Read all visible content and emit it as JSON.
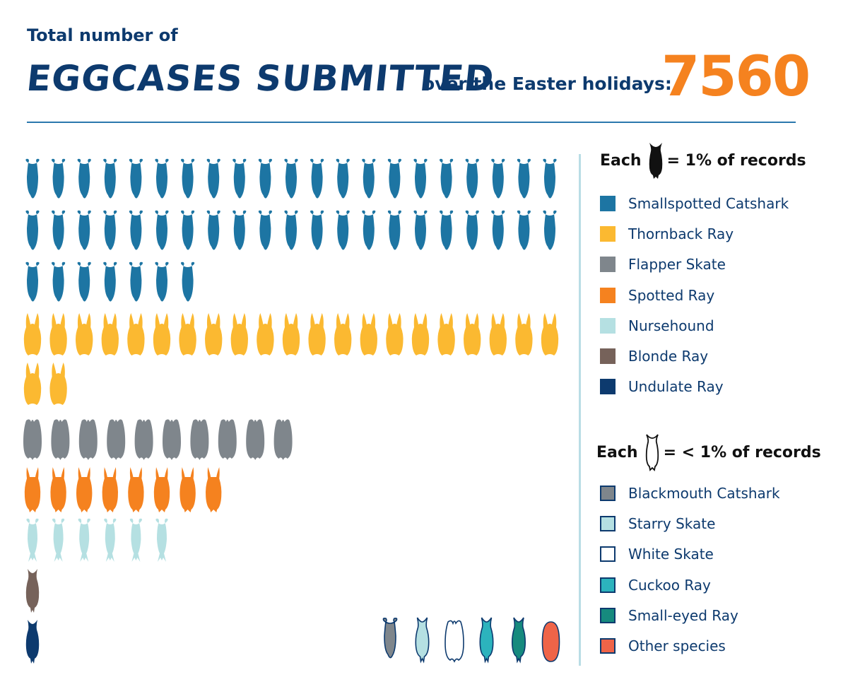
{
  "header": {
    "subtitle": "Total number of",
    "title_big": "EGGCASES SUBMITTED",
    "title_rest": "over the Easter holidays:",
    "total": "7560"
  },
  "legend": {
    "major_heading_prefix": "Each",
    "major_heading_suffix": "= 1% of records",
    "minor_heading_prefix": "Each",
    "minor_heading_suffix": "= < 1% of records",
    "major_items": [
      {
        "label": "Smallspotted Catshark",
        "color": "#1d75a3"
      },
      {
        "label": "Thornback Ray",
        "color": "#fbb931"
      },
      {
        "label": "Flapper Skate",
        "color": "#7f868c"
      },
      {
        "label": "Spotted Ray",
        "color": "#f5821f"
      },
      {
        "label": "Nursehound",
        "color": "#b5e0e2"
      },
      {
        "label": "Blonde Ray",
        "color": "#76625a"
      },
      {
        "label": "Undulate Ray",
        "color": "#0d3a6e"
      }
    ],
    "minor_items": [
      {
        "label": "Blackmouth Catshark",
        "color": "#7f868c"
      },
      {
        "label": "Starry Skate",
        "color": "#b5e0e2"
      },
      {
        "label": "White Skate",
        "color": "#ffffff"
      },
      {
        "label": "Cuckoo Ray",
        "color": "#2cb3bd"
      },
      {
        "label": "Small-eyed Ray",
        "color": "#168a7e"
      },
      {
        "label": "Other species",
        "color": "#ef6448"
      }
    ]
  },
  "chart_data": {
    "type": "pictogram",
    "unit": "% of records",
    "series": [
      {
        "name": "Smallspotted Catshark",
        "value": 49,
        "color": "#1d75a3",
        "icon": "catshark-eggcase-icon"
      },
      {
        "name": "Thornback Ray",
        "value": 23,
        "color": "#fbb931",
        "icon": "thornback-eggcase-icon"
      },
      {
        "name": "Flapper Skate",
        "value": 10,
        "color": "#7f868c",
        "icon": "skate-eggcase-icon"
      },
      {
        "name": "Spotted Ray",
        "value": 8,
        "color": "#f5821f",
        "icon": "spotted-ray-eggcase-icon"
      },
      {
        "name": "Nursehound",
        "value": 6,
        "color": "#b5e0e2",
        "icon": "nursehound-eggcase-icon"
      },
      {
        "name": "Blonde Ray",
        "value": 1,
        "color": "#76625a",
        "icon": "ray-eggcase-icon"
      },
      {
        "name": "Undulate Ray",
        "value": 1,
        "color": "#0d3a6e",
        "icon": "ray-eggcase-icon"
      }
    ],
    "minor_series": [
      {
        "name": "Blackmouth Catshark",
        "value": "<1",
        "color": "#7f868c",
        "icon": "catshark-eggcase-icon"
      },
      {
        "name": "Starry Skate",
        "value": "<1",
        "color": "#b5e0e2",
        "icon": "ray-eggcase-icon"
      },
      {
        "name": "White Skate",
        "value": "<1",
        "color": "#ffffff",
        "icon": "skate-eggcase-icon"
      },
      {
        "name": "Cuckoo Ray",
        "value": "<1",
        "color": "#2cb3bd",
        "icon": "ray-eggcase-icon"
      },
      {
        "name": "Small-eyed Ray",
        "value": "<1",
        "color": "#168a7e",
        "icon": "ray-eggcase-icon"
      },
      {
        "name": "Other species",
        "value": "<1",
        "color": "#ef6448",
        "icon": "oval-eggcase-icon"
      }
    ]
  }
}
